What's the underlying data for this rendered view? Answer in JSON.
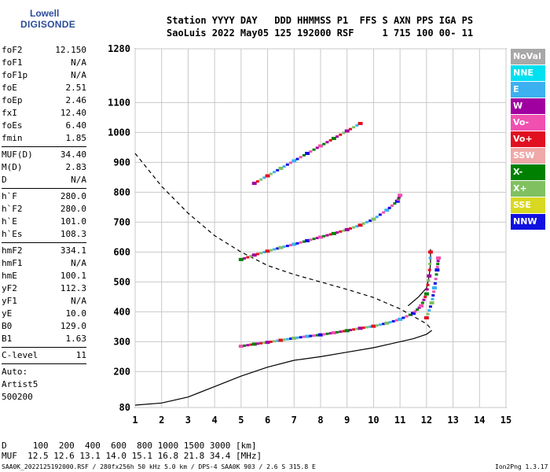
{
  "logo": {
    "line1": "Lowell",
    "line2": "DIGISONDE"
  },
  "header": {
    "line1": "Station YYYY DAY   DDD HHMMSS P1  FFS S AXN PPS IGA PS",
    "line2": "SaoLuis 2022 May05 125 192000 RSF     1 715 100 00- 11"
  },
  "params": [
    [
      {
        "label": "foF2",
        "value": "12.150"
      },
      {
        "label": "foF1",
        "value": "N/A"
      },
      {
        "label": "foF1p",
        "value": "N/A"
      },
      {
        "label": "foE",
        "value": "2.51"
      },
      {
        "label": "foEp",
        "value": "2.46"
      },
      {
        "label": "fxI",
        "value": "12.40"
      },
      {
        "label": "foEs",
        "value": "6.40"
      },
      {
        "label": "fmin",
        "value": "1.85"
      }
    ],
    [
      {
        "label": "MUF(D)",
        "value": "34.40"
      },
      {
        "label": "M(D)",
        "value": "2.83"
      },
      {
        "label": "D",
        "value": "N/A"
      }
    ],
    [
      {
        "label": "h`F",
        "value": "280.0"
      },
      {
        "label": "h`F2",
        "value": "280.0"
      },
      {
        "label": "h`E",
        "value": "101.0"
      },
      {
        "label": "h`Es",
        "value": "108.3"
      }
    ],
    [
      {
        "label": "hmF2",
        "value": "334.1"
      },
      {
        "label": "hmF1",
        "value": "N/A"
      },
      {
        "label": "hmE",
        "value": "100.1"
      },
      {
        "label": "yF2",
        "value": "112.3"
      },
      {
        "label": "yF1",
        "value": "N/A"
      },
      {
        "label": "yE",
        "value": "10.0"
      },
      {
        "label": "B0",
        "value": "129.0"
      },
      {
        "label": "B1",
        "value": "1.63"
      }
    ],
    [
      {
        "label": "C-level",
        "value": "11"
      }
    ],
    [
      {
        "label": "Auto:",
        "value": ""
      },
      {
        "label": "Artist5",
        "value": ""
      },
      {
        "label": "500200",
        "value": ""
      }
    ]
  ],
  "legend": [
    {
      "label": "NoVal",
      "color": "#a8a8a8"
    },
    {
      "label": "NNE",
      "color": "#00e0f0"
    },
    {
      "label": "E",
      "color": "#3cb0f0"
    },
    {
      "label": "W",
      "color": "#a000a0"
    },
    {
      "label": "Vo-",
      "color": "#f050b0"
    },
    {
      "label": "Vo+",
      "color": "#e01020"
    },
    {
      "label": "SSW",
      "color": "#f0a8a8"
    },
    {
      "label": "X-",
      "color": "#008000"
    },
    {
      "label": "X+",
      "color": "#80c060"
    },
    {
      "label": "SSE",
      "color": "#d8d820"
    },
    {
      "label": "NNW",
      "color": "#1010e0"
    }
  ],
  "bottom": {
    "line1": "D     100  200  400  600  800 1000 1500 3000 [km]",
    "line2": "MUF  12.5 12.6 13.1 14.0 15.1 16.8 21.8 34.4 [MHz]"
  },
  "footer": {
    "left": "SAA0K_2022125192000.RSF / 280fx256h 50 kHz 5.0 km / DPS-4 SAA0K 903 / 2.6 S 315.8 E",
    "right": "Ion2Png 1.3.17"
  },
  "chart_data": {
    "type": "scatter",
    "xlabel": "",
    "ylabel": "",
    "xlim": [
      1,
      15
    ],
    "ylim": [
      80,
      1280
    ],
    "grid": true,
    "x_ticks": [
      1,
      2,
      3,
      4,
      5,
      6,
      7,
      8,
      9,
      10,
      11,
      12,
      13,
      14,
      15
    ],
    "y_ticks": [
      80,
      200,
      300,
      400,
      500,
      600,
      700,
      800,
      900,
      1000,
      1100,
      1280
    ],
    "series": [
      {
        "points": [
          [
            5.0,
            285
          ],
          [
            5.5,
            292
          ],
          [
            6.0,
            298
          ],
          [
            6.5,
            305
          ],
          [
            7.0,
            312
          ],
          [
            7.5,
            318
          ],
          [
            8.0,
            323
          ],
          [
            8.5,
            330
          ],
          [
            9.0,
            337
          ],
          [
            9.5,
            345
          ],
          [
            10.0,
            352
          ],
          [
            10.5,
            362
          ],
          [
            11.0,
            375
          ],
          [
            11.5,
            395
          ],
          [
            11.8,
            420
          ],
          [
            12.0,
            460
          ],
          [
            12.1,
            520
          ],
          [
            12.15,
            600
          ]
        ]
      },
      {
        "points": [
          [
            5.0,
            575
          ],
          [
            5.5,
            590
          ],
          [
            6.0,
            603
          ],
          [
            6.5,
            615
          ],
          [
            7.0,
            626
          ],
          [
            7.5,
            638
          ],
          [
            8.0,
            650
          ],
          [
            8.5,
            662
          ],
          [
            9.0,
            675
          ],
          [
            9.5,
            690
          ],
          [
            10.0,
            710
          ],
          [
            10.5,
            740
          ],
          [
            10.9,
            770
          ],
          [
            11.0,
            790
          ]
        ]
      },
      {
        "points": [
          [
            5.5,
            830
          ],
          [
            6.0,
            855
          ],
          [
            6.5,
            880
          ],
          [
            7.0,
            905
          ],
          [
            7.5,
            930
          ],
          [
            8.0,
            955
          ],
          [
            8.5,
            980
          ],
          [
            9.0,
            1005
          ],
          [
            9.5,
            1030
          ]
        ]
      },
      {
        "points": [
          [
            12.0,
            380
          ],
          [
            12.2,
            430
          ],
          [
            12.3,
            480
          ],
          [
            12.4,
            540
          ],
          [
            12.45,
            580
          ]
        ]
      }
    ],
    "curves": [
      {
        "points": [
          [
            1.0,
            88
          ],
          [
            2.0,
            95
          ],
          [
            3.0,
            115
          ],
          [
            4.0,
            150
          ],
          [
            5.0,
            185
          ],
          [
            6.0,
            215
          ],
          [
            7.0,
            238
          ],
          [
            8.0,
            250
          ],
          [
            9.0,
            265
          ],
          [
            10.0,
            280
          ],
          [
            11.0,
            300
          ],
          [
            11.5,
            310
          ],
          [
            12.0,
            325
          ],
          [
            12.2,
            338
          ]
        ]
      },
      {
        "points": [
          [
            11.3,
            420
          ],
          [
            11.7,
            450
          ],
          [
            12.0,
            480
          ],
          [
            12.1,
            520
          ],
          [
            12.15,
            560
          ],
          [
            12.15,
            610
          ]
        ]
      },
      {
        "points": [
          [
            1.0,
            930
          ],
          [
            2.0,
            820
          ],
          [
            3.0,
            730
          ],
          [
            4.0,
            655
          ],
          [
            5.0,
            600
          ],
          [
            6.0,
            555
          ],
          [
            7.0,
            525
          ],
          [
            8.0,
            500
          ],
          [
            9.0,
            475
          ],
          [
            10.0,
            448
          ],
          [
            11.0,
            410
          ],
          [
            12.0,
            360
          ],
          [
            12.2,
            340
          ]
        ]
      }
    ]
  }
}
